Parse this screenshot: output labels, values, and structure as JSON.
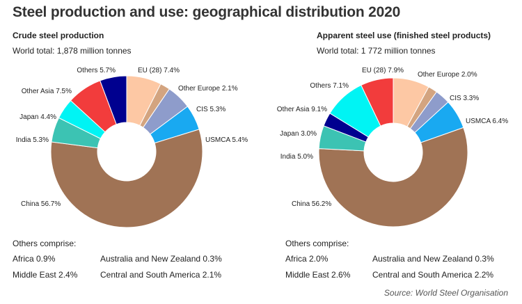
{
  "title": "Steel production and use: geographical distribution 2020",
  "source": "Source: World Steel Organisation",
  "chart_data": [
    {
      "type": "pie",
      "subtitle": "Crude steel production",
      "total_text": "World total: 1,878 million tonnes",
      "slices": [
        {
          "name": "EU (28)",
          "value": 7.4,
          "label": "EU (28) 7.4%",
          "color": "#fdc8a4"
        },
        {
          "name": "Other Europe",
          "value": 2.1,
          "label": "Other Europe 2.1%",
          "color": "#d3a480"
        },
        {
          "name": "CIS",
          "value": 5.3,
          "label": "CIS 5.3%",
          "color": "#8e9ccb"
        },
        {
          "name": "USMCA",
          "value": 5.4,
          "label": "USMCA 5.4%",
          "color": "#19a9f1"
        },
        {
          "name": "China",
          "value": 56.7,
          "label": "China 56.7%",
          "color": "#a07355"
        },
        {
          "name": "India",
          "value": 5.3,
          "label": "India 5.3%",
          "color": "#3cc3b3"
        },
        {
          "name": "Japan",
          "value": 4.4,
          "label": "Japan 4.4%",
          "color": "#00f4f4"
        },
        {
          "name": "Other Asia",
          "value": 7.5,
          "label": "Other Asia 7.5%",
          "color": "#f23c3c"
        },
        {
          "name": "Others",
          "value": 5.7,
          "label": "Others 5.7%",
          "color": "#00008f"
        }
      ],
      "others_heading": "Others comprise:",
      "others": [
        {
          "text": "Africa 0.9%"
        },
        {
          "text": "Australia and New Zealand 0.3%"
        },
        {
          "text": "Middle East 2.4%"
        },
        {
          "text": "Central and South America 2.1%"
        }
      ]
    },
    {
      "type": "pie",
      "subtitle": "Apparent steel use (finished steel products)",
      "total_text": "World total: 1 772 million tonnes",
      "slices": [
        {
          "name": "EU (28)",
          "value": 7.9,
          "label": "EU (28) 7.9%",
          "color": "#fdc8a4"
        },
        {
          "name": "Other Europe",
          "value": 2.0,
          "label": "Other Europe 2.0%",
          "color": "#d3a480"
        },
        {
          "name": "CIS",
          "value": 3.3,
          "label": "CIS 3.3%",
          "color": "#8e9ccb"
        },
        {
          "name": "USMCA",
          "value": 6.4,
          "label": "USMCA 6.4%",
          "color": "#19a9f1"
        },
        {
          "name": "China",
          "value": 56.2,
          "label": "China 56.2%",
          "color": "#a07355"
        },
        {
          "name": "India",
          "value": 5.0,
          "label": "India 5.0%",
          "color": "#3cc3b3"
        },
        {
          "name": "Japan",
          "value": 3.0,
          "label": "Japan 3.0%",
          "color": "#00008f"
        },
        {
          "name": "Other Asia",
          "value": 9.1,
          "label": "Other Asia 9.1%",
          "color": "#00f4f4"
        },
        {
          "name": "Others",
          "value": 7.1,
          "label": "Others 7.1%",
          "color": "#f23c3c"
        }
      ],
      "others_heading": "Others comprise:",
      "others": [
        {
          "text": "Africa 2.0%"
        },
        {
          "text": "Australia and New Zealand 0.3%"
        },
        {
          "text": "Middle East 2.6%"
        },
        {
          "text": "Central and South America 2.2%"
        }
      ]
    }
  ]
}
